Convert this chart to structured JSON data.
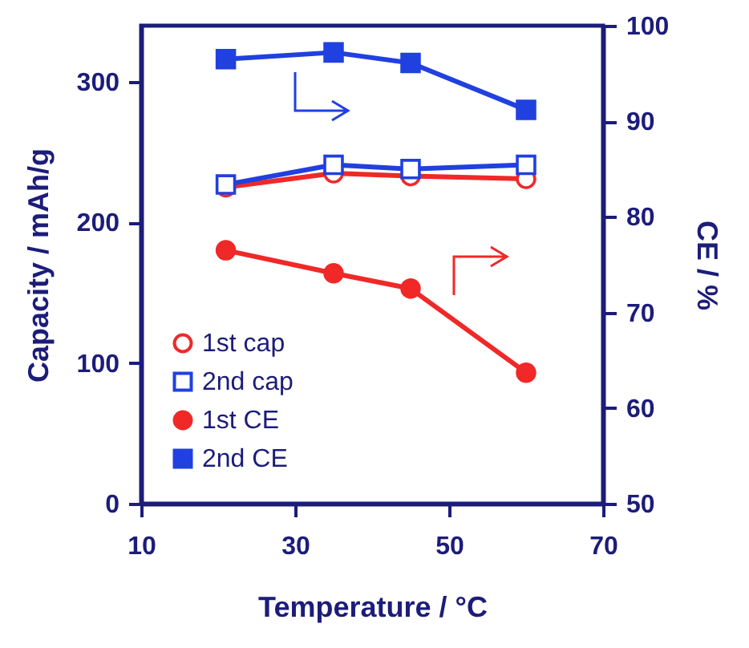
{
  "chart_data": {
    "type": "line",
    "xlabel": "Temperature / °C",
    "ylabel": "Capacity / mAh/g",
    "y2label": "CE / %",
    "x": [
      21,
      35,
      45,
      60
    ],
    "xlim": [
      10,
      70
    ],
    "xticks": [
      10,
      30,
      50,
      70
    ],
    "ylim": [
      0,
      340
    ],
    "yticks": [
      0,
      100,
      200,
      300
    ],
    "y2lim": [
      50,
      100
    ],
    "y2ticks": [
      50,
      60,
      70,
      80,
      90,
      100
    ],
    "legend": "bottom left",
    "grid": false,
    "series": [
      {
        "name": "1st cap",
        "color": "#f02828",
        "marker": "circle",
        "values": [
          225,
          235,
          233,
          231
        ]
      },
      {
        "name": "2nd cap",
        "color": "#2040e0",
        "marker": "square",
        "values": [
          227,
          241,
          238,
          241
        ]
      },
      {
        "name": "1st CE",
        "color": "#f02828",
        "marker": "circle",
        "axis": "y2",
        "values": [
          76.5,
          74.1,
          72.5,
          63.7
        ]
      },
      {
        "name": "2nd CE",
        "color": "#2040e0",
        "marker": "square",
        "axis": "y2",
        "values": [
          96.5,
          97.2,
          96.1,
          91.2
        ]
      }
    ]
  }
}
